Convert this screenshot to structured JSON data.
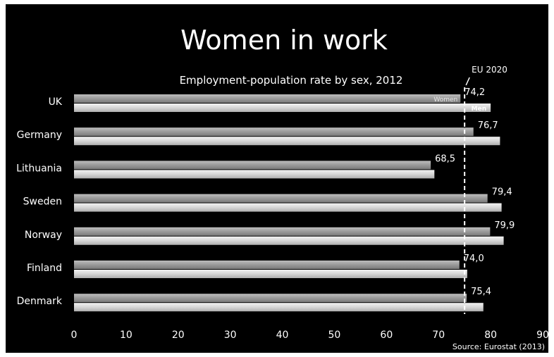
{
  "chart_data": {
    "type": "bar",
    "orientation": "horizontal",
    "title": "Women in work",
    "subtitle": "Employment-population rate by sex, 2012",
    "categories": [
      "UK",
      "Germany",
      "Lithuania",
      "Sweden",
      "Norway",
      "Finland",
      "Denmark"
    ],
    "series": [
      {
        "name": "Women",
        "values": [
          74.2,
          76.7,
          68.5,
          79.4,
          79.9,
          74.0,
          75.4
        ]
      },
      {
        "name": "Men",
        "values": [
          80.0,
          81.8,
          69.2,
          82.1,
          82.5,
          75.5,
          78.6
        ]
      }
    ],
    "value_labels": [
      "74,2",
      "76,7",
      "68,5",
      "79,4",
      "79,9",
      "74,0",
      "75,4"
    ],
    "xlim": [
      0,
      90
    ],
    "xticks": [
      0,
      10,
      20,
      30,
      40,
      50,
      60,
      70,
      80,
      90
    ],
    "reference_line": {
      "value": 75,
      "label": "EU 2020",
      "style": "dashed"
    },
    "source": "Source: Eurostat (2013)",
    "grid": false,
    "legend": "inline-in-first-bar",
    "colors": {
      "background": "#000000",
      "text": "#ffffff",
      "women": "#9a9a9a",
      "men": "#d6d6d6"
    }
  }
}
